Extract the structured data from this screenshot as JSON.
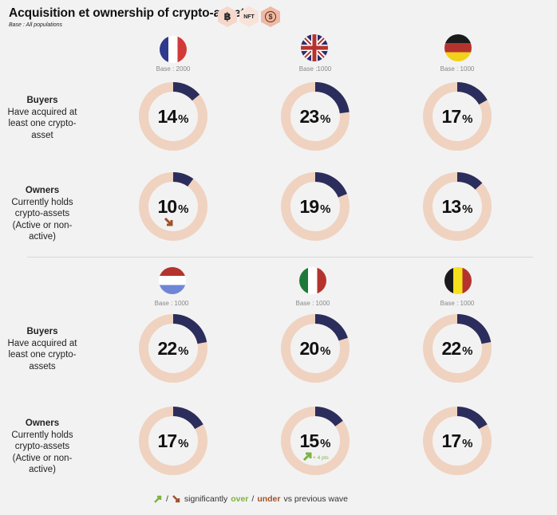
{
  "header": {
    "title": "Acquisition et ownership of crypto-assets",
    "subtitle": "Base : All populations",
    "badges": [
      {
        "icon": "bitcoin-icon",
        "label": "฿"
      },
      {
        "icon": "nft-icon",
        "label": "NFT"
      },
      {
        "icon": "dollar-coin-icon",
        "label": "$"
      }
    ]
  },
  "row_labels": {
    "buyers_title": "Buyers",
    "buyers_desc_top": "Have acquired at least one crypto-asset",
    "buyers_desc_bottom": "Have acquired at least one crypto-assets",
    "owners_title": "Owners",
    "owners_desc": "Currently holds crypto-assets (Active or non-active)"
  },
  "countries": [
    {
      "name": "France",
      "flag": "france-flag",
      "base": "Base : 2000"
    },
    {
      "name": "United Kingdom",
      "flag": "uk-flag",
      "base": "Base :1000"
    },
    {
      "name": "Germany",
      "flag": "germany-flag",
      "base": "Base : 1000"
    },
    {
      "name": "Netherlands",
      "flag": "netherlands-flag",
      "base": "Base : 1000"
    },
    {
      "name": "Italy",
      "flag": "italy-flag",
      "base": "Base : 1000"
    },
    {
      "name": "Belgium",
      "flag": "belgium-flag",
      "base": "Base : 1000"
    }
  ],
  "legend": {
    "prefix": "/",
    "text_before": "significantly",
    "over": "over",
    "sep": "/",
    "under": "under",
    "text_after": "vs previous wave"
  },
  "colors": {
    "filled": "#2b2d5c",
    "track": "#f0d2c0",
    "up": "#7cb342",
    "down": "#a0522d"
  },
  "chart_data": {
    "type": "donut-grid",
    "title": "Acquisition et ownership of crypto-assets",
    "metrics": [
      "Buyers",
      "Owners"
    ],
    "unit": "%",
    "series": [
      {
        "country": "France",
        "buyers": 14,
        "owners": 10,
        "owners_trend": "down",
        "owners_trend_label": ""
      },
      {
        "country": "United Kingdom",
        "buyers": 23,
        "owners": 19
      },
      {
        "country": "Germany",
        "buyers": 17,
        "owners": 13
      },
      {
        "country": "Netherlands",
        "buyers": 22,
        "owners": 17
      },
      {
        "country": "Italy",
        "buyers": 20,
        "owners": 15,
        "owners_trend": "up",
        "owners_trend_label": "+ 4 pts"
      },
      {
        "country": "Belgium",
        "buyers": 22,
        "owners": 17
      }
    ]
  }
}
